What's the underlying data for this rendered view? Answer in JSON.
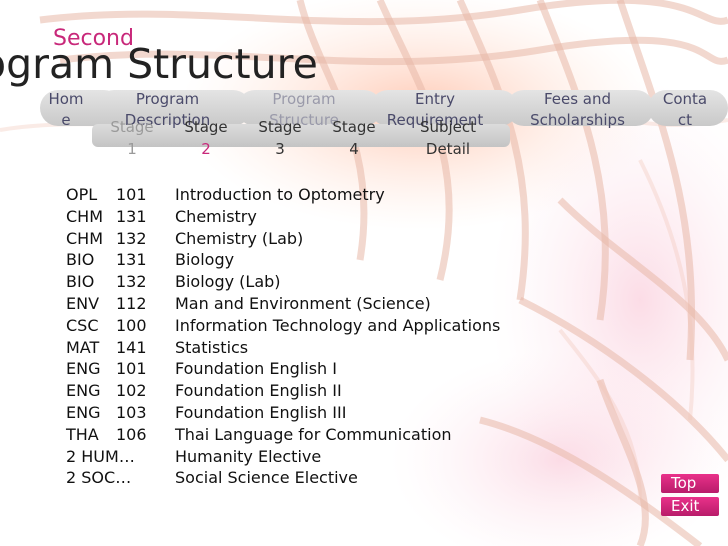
{
  "header": {
    "subtitle": "Second",
    "title": "ogram Structure"
  },
  "nav": {
    "items": [
      {
        "label": "Hom e"
      },
      {
        "label": "Program Description"
      },
      {
        "label": "Program Structure"
      },
      {
        "label": "Entry Requirement"
      },
      {
        "label": "Fees and Scholarships"
      },
      {
        "label": "Conta ct"
      }
    ]
  },
  "subnav": {
    "items": [
      {
        "label": "Stage",
        "num": "1"
      },
      {
        "label": "Stage",
        "num": "2"
      },
      {
        "label": "Stage",
        "num": "3"
      },
      {
        "label": "Stage",
        "num": "4"
      },
      {
        "label": "Subject",
        "num": "Detail"
      }
    ],
    "active_index": 1
  },
  "courses": [
    {
      "dept": "OPL",
      "num": "101",
      "name": "Introduction to Optometry"
    },
    {
      "dept": "CHM",
      "num": "131",
      "name": "Chemistry"
    },
    {
      "dept": "CHM",
      "num": "132",
      "name": "Chemistry (Lab)"
    },
    {
      "dept": "BIO",
      "num": "131",
      "name": "Biology"
    },
    {
      "dept": "BIO",
      "num": "132",
      "name": "Biology (Lab)"
    },
    {
      "dept": "ENV",
      "num": "112",
      "name": "Man and Environment (Science)"
    },
    {
      "dept": "CSC",
      "num": "100",
      "name": "Information Technology and Applications"
    },
    {
      "dept": "MAT",
      "num": "141",
      "name": "Statistics"
    },
    {
      "dept": "ENG",
      "num": "101",
      "name": "Foundation English I"
    },
    {
      "dept": "ENG",
      "num": "102",
      "name": "Foundation English II"
    },
    {
      "dept": "ENG",
      "num": "103",
      "name": "Foundation English III"
    },
    {
      "dept": "THA",
      "num": "106",
      "name": "Thai Language for Communication"
    },
    {
      "code": "2 HUM…",
      "name": "Humanity Elective"
    },
    {
      "code": "2 SOC…",
      "name": "Social Science Elective"
    }
  ],
  "buttons": {
    "top": "Top",
    "exit": "Exit"
  },
  "colors": {
    "accent": "#c8287a",
    "button": "#d52a7c"
  }
}
